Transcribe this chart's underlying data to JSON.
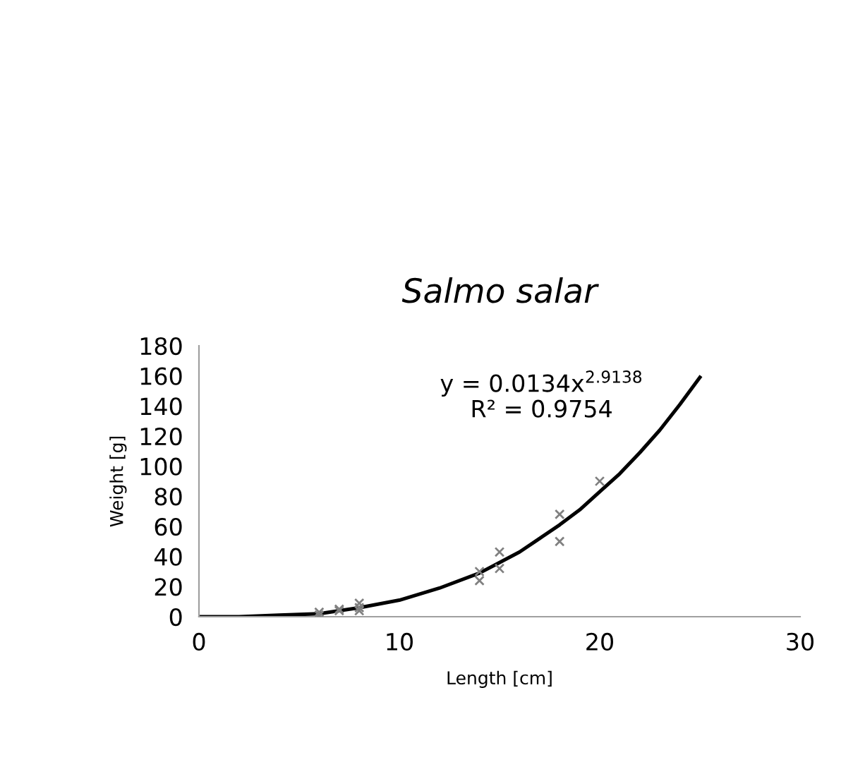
{
  "chart_data": {
    "type": "scatter",
    "title": "Salmo salar",
    "xlabel": "Length [cm]",
    "ylabel": "Weight [g]",
    "annotations": [
      "y = 0.0134x$^{2.9138}$",
      "R² = 0.9754"
    ],
    "xlim": [
      0,
      30
    ],
    "xticks": [
      0,
      10,
      20,
      30
    ],
    "ylim": [
      0,
      180
    ],
    "yticks": [
      0,
      20,
      40,
      60,
      80,
      100,
      120,
      140,
      160,
      180
    ],
    "grid": false,
    "legend": false,
    "series": [
      {
        "type": "scatter",
        "color": "#808080",
        "marker": "cross",
        "x": [
          6,
          6,
          7,
          7,
          8,
          8,
          8,
          14,
          14,
          15,
          15,
          18,
          18,
          20
        ],
        "values": [
          3,
          1,
          5,
          4,
          9,
          6,
          4,
          30,
          24,
          43,
          32,
          68,
          50,
          90
        ]
      },
      {
        "type": "line",
        "color": "#000000",
        "marker": "none",
        "line_style": "solid",
        "x": [
          0,
          2,
          4,
          6,
          8,
          10,
          12,
          14,
          15,
          16,
          17,
          18,
          19,
          20,
          21,
          22,
          23,
          24,
          25
        ],
        "values": [
          0,
          0,
          1,
          2,
          6,
          11,
          19,
          29,
          36,
          43,
          52,
          61,
          71,
          83,
          95,
          109,
          124,
          141,
          159
        ]
      }
    ]
  }
}
